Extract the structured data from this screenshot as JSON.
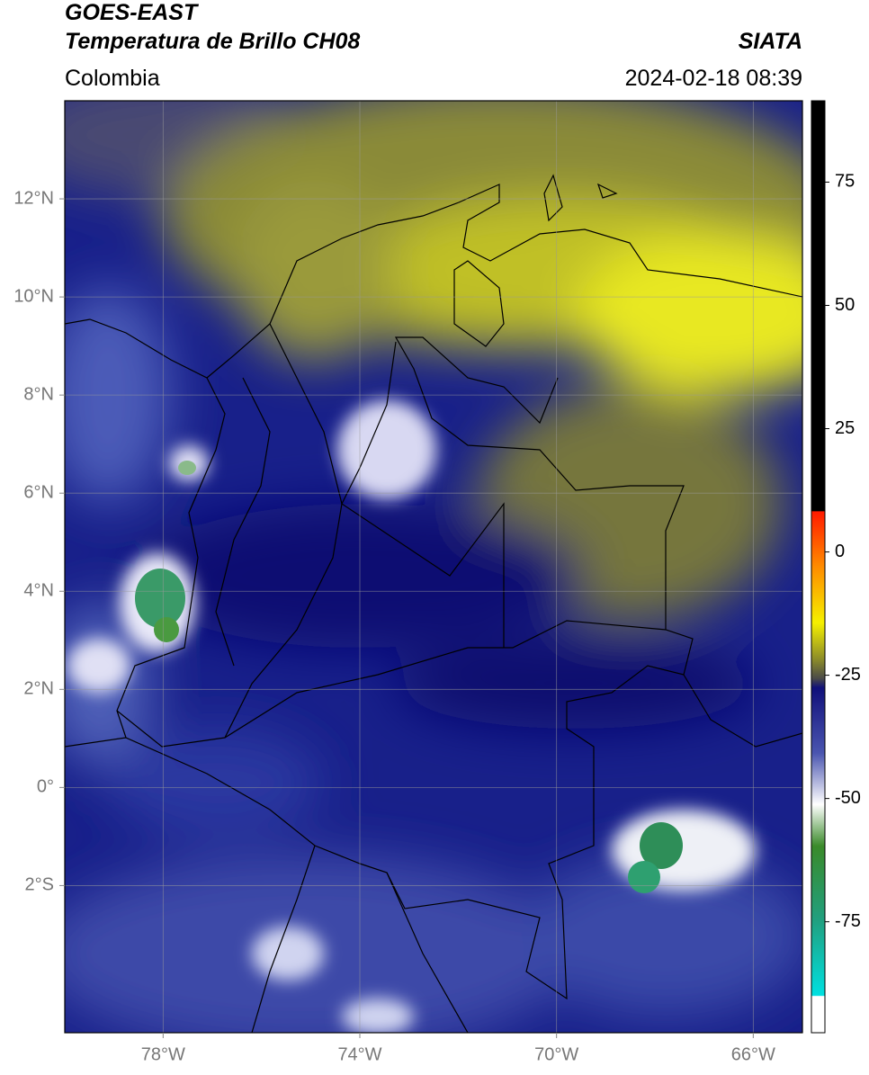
{
  "header": {
    "title": "GOES-EAST",
    "subtitle": "Temperatura de Brillo CH08",
    "source": "SIATA",
    "region": "Colombia",
    "datetime": "2024-02-18 08:39"
  },
  "map": {
    "xlim": [
      -80,
      -65
    ],
    "ylim": [
      -5,
      14
    ],
    "grid": true,
    "xticks": [
      {
        "value": -78,
        "label": "78°W"
      },
      {
        "value": -74,
        "label": "74°W"
      },
      {
        "value": -70,
        "label": "70°W"
      },
      {
        "value": -66,
        "label": "66°W"
      }
    ],
    "yticks": [
      {
        "value": 12,
        "label": "12°N"
      },
      {
        "value": 10,
        "label": "10°N"
      },
      {
        "value": 8,
        "label": "8°N"
      },
      {
        "value": 6,
        "label": "6°N"
      },
      {
        "value": 4,
        "label": "4°N"
      },
      {
        "value": 2,
        "label": "2°N"
      },
      {
        "value": 0,
        "label": "0°"
      },
      {
        "value": -2,
        "label": "2°S"
      }
    ]
  },
  "colorbar": {
    "lim": [
      -97.5,
      91.5
    ],
    "ticks": [
      75,
      50,
      25,
      0,
      -25,
      -50,
      -75
    ]
  }
}
